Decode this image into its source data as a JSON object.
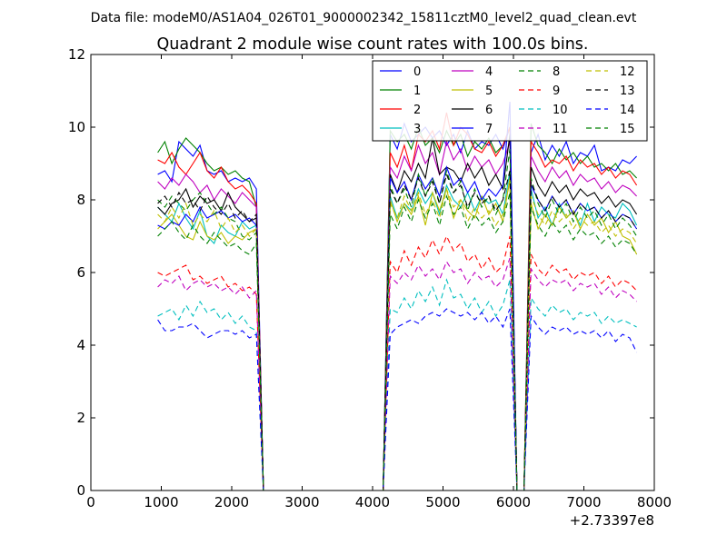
{
  "suptitle": "Data file: modeM0/AS1A04_026T01_9000002342_15811cztM0_level2_quad_clean.evt",
  "chart_data": {
    "type": "line",
    "title": "Quadrant 2 module wise count rates with 100.0s bins.",
    "xlabel": "",
    "ylabel": "",
    "x_offset_label": "+2.73397e8",
    "xlim": [
      0,
      8000
    ],
    "ylim": [
      0,
      12
    ],
    "xticks": [
      0,
      1000,
      2000,
      3000,
      4000,
      5000,
      6000,
      7000,
      8000
    ],
    "yticks": [
      0,
      2,
      4,
      6,
      8,
      10,
      12
    ],
    "grid": false,
    "legend_position": "top-right",
    "x": [
      950,
      1050,
      1150,
      1250,
      1350,
      1450,
      1550,
      1650,
      1750,
      1850,
      1950,
      2050,
      2150,
      2250,
      2350,
      2450,
      2550,
      2650,
      2750,
      2850,
      2950,
      3050,
      3150,
      3250,
      3350,
      3450,
      3550,
      3650,
      3750,
      3850,
      3950,
      4050,
      4150,
      4250,
      4350,
      4450,
      4550,
      4650,
      4750,
      4850,
      4950,
      5050,
      5150,
      5250,
      5350,
      5450,
      5550,
      5650,
      5750,
      5850,
      5950,
      6050,
      6150,
      6250,
      6350,
      6450,
      6550,
      6650,
      6750,
      6850,
      6950,
      7050,
      7150,
      7250,
      7350,
      7450,
      7550,
      7650,
      7750,
      7850
    ],
    "segments": [
      [
        0,
        16
      ],
      [
        16,
        34
      ],
      [
        34,
        52
      ],
      [
        52,
        54
      ],
      [
        54,
        70
      ]
    ],
    "series": [
      {
        "name": "0",
        "color": "#0000ff",
        "style": "solid",
        "active1": [
          8.7,
          8.8,
          8.5,
          9.6,
          9.4,
          9.2,
          9.5,
          8.8,
          8.7,
          8.8,
          8.5,
          8.6,
          8.5,
          8.6,
          8.3
        ],
        "active2": [
          9.8,
          9.4,
          10.1,
          9.6,
          9.8,
          10.0,
          9.7,
          9.9,
          9.5,
          9.8,
          9.3,
          9.9,
          9.4,
          9.6,
          9.5,
          9.8,
          9.4
        ],
        "active3": [
          9.3,
          9.8,
          9.1,
          9.5,
          9.2,
          9.6,
          9.0,
          9.3,
          9.2,
          9.5,
          8.8,
          8.9,
          8.8,
          9.1,
          9.0,
          9.2
        ],
        "peak": 10.0
      },
      {
        "name": "1",
        "color": "#008000",
        "style": "solid",
        "active1": [
          9.3,
          9.6,
          9.0,
          9.4,
          9.7,
          9.5,
          9.3,
          9.0,
          8.8,
          8.9,
          8.7,
          8.8,
          8.6,
          8.5,
          7.8
        ],
        "active2": [
          9.9,
          9.6,
          9.8,
          9.4,
          10.0,
          9.5,
          9.7,
          9.3,
          9.9,
          9.5,
          9.8,
          9.2,
          9.6,
          9.4,
          9.7,
          9.3,
          9.5
        ],
        "active3": [
          10.1,
          9.5,
          9.3,
          9.0,
          9.4,
          9.1,
          9.3,
          9.0,
          9.2,
          8.9,
          9.0,
          8.8,
          9.0,
          8.7,
          8.8,
          8.6
        ],
        "peak": 10.0
      },
      {
        "name": "2",
        "color": "#ff0000",
        "style": "solid",
        "active1": [
          9.1,
          9.0,
          9.3,
          8.9,
          8.7,
          9.0,
          9.3,
          8.8,
          8.6,
          8.9,
          8.5,
          8.3,
          8.4,
          8.2,
          7.9
        ],
        "active2": [
          9.3,
          8.9,
          9.5,
          8.8,
          9.8,
          9.6,
          9.9,
          9.4,
          10.4,
          9.5,
          10.0,
          9.8,
          9.4,
          9.3,
          9.6,
          9.2,
          9.5
        ],
        "active3": [
          9.6,
          9.3,
          8.9,
          9.1,
          9.0,
          9.2,
          8.8,
          9.1,
          8.9,
          9.0,
          8.7,
          8.9,
          8.6,
          8.8,
          8.7,
          8.4
        ],
        "peak": 10.0
      },
      {
        "name": "3",
        "color": "#00bfbf",
        "style": "solid",
        "active1": [
          7.8,
          7.6,
          7.4,
          7.9,
          7.5,
          7.2,
          7.7,
          7.0,
          6.8,
          7.3,
          7.1,
          7.0,
          7.4,
          7.2,
          7.3
        ],
        "active2": [
          8.1,
          7.5,
          7.9,
          7.7,
          8.3,
          7.9,
          8.2,
          7.6,
          8.4,
          8.0,
          7.8,
          8.2,
          7.7,
          8.1,
          7.9,
          8.0,
          7.6
        ],
        "active3": [
          8.3,
          7.5,
          7.8,
          7.3,
          7.9,
          7.5,
          7.7,
          7.3,
          7.9,
          7.4,
          7.8,
          7.6,
          7.5,
          7.9,
          7.7,
          7.3
        ],
        "peak": 8.8
      },
      {
        "name": "4",
        "color": "#bf00bf",
        "style": "solid",
        "active1": [
          8.5,
          8.3,
          8.6,
          8.4,
          8.7,
          8.5,
          8.2,
          8.4,
          8.0,
          8.3,
          8.1,
          7.9,
          8.2,
          8.0,
          7.8
        ],
        "active2": [
          8.9,
          8.6,
          9.2,
          8.8,
          9.5,
          9.0,
          9.3,
          8.7,
          9.6,
          9.1,
          9.4,
          8.8,
          9.2,
          8.9,
          9.1,
          8.7,
          9.0
        ],
        "active3": [
          9.2,
          8.8,
          8.5,
          8.9,
          8.6,
          8.8,
          8.4,
          8.7,
          8.5,
          8.6,
          8.3,
          8.5,
          8.2,
          8.4,
          8.3,
          8.1
        ],
        "peak": 9.6
      },
      {
        "name": "5",
        "color": "#bfbf00",
        "style": "solid",
        "active1": [
          7.2,
          7.4,
          7.6,
          7.3,
          7.0,
          6.9,
          7.4,
          7.0,
          6.9,
          7.1,
          6.8,
          7.0,
          6.9,
          7.1,
          7.2
        ],
        "active2": [
          8.0,
          7.4,
          7.9,
          7.6,
          8.1,
          7.3,
          8.2,
          7.7,
          8.3,
          7.5,
          8.0,
          7.7,
          7.5,
          8.1,
          7.6,
          7.9,
          7.4
        ],
        "active3": [
          7.9,
          7.2,
          7.6,
          7.3,
          7.8,
          7.5,
          7.7,
          7.2,
          7.6,
          7.3,
          7.5,
          7.1,
          7.4,
          7.0,
          6.9,
          6.5
        ],
        "peak": 8.6
      },
      {
        "name": "6",
        "color": "#000000",
        "style": "solid",
        "active1": [
          7.8,
          7.6,
          7.9,
          8.0,
          8.3,
          7.8,
          8.1,
          7.9,
          8.0,
          7.7,
          8.2,
          7.8,
          7.6,
          7.4,
          7.5
        ],
        "active2": [
          8.7,
          8.2,
          8.8,
          8.5,
          9.0,
          8.6,
          9.7,
          8.7,
          8.9,
          8.8,
          8.5,
          9.0,
          8.6,
          8.9,
          8.4,
          8.7,
          8.3
        ],
        "active3": [
          8.9,
          8.4,
          8.1,
          8.5,
          8.2,
          8.4,
          8.0,
          8.3,
          8.1,
          8.2,
          7.9,
          8.1,
          7.8,
          8.0,
          7.9,
          7.6
        ],
        "peak": 9.8
      },
      {
        "name": "7",
        "color": "#0000ff",
        "style": "solid",
        "active1": [
          7.3,
          7.2,
          7.4,
          7.3,
          7.6,
          7.4,
          7.8,
          7.5,
          7.6,
          7.7,
          7.5,
          7.6,
          7.4,
          7.5,
          7.3
        ],
        "active2": [
          8.6,
          8.2,
          8.5,
          8.0,
          8.7,
          8.3,
          8.6,
          8.1,
          8.9,
          8.4,
          8.6,
          8.2,
          8.5,
          8.0,
          8.3,
          8.1,
          8.4
        ],
        "active3": [
          8.4,
          8.0,
          7.7,
          8.1,
          7.8,
          8.0,
          7.6,
          7.9,
          7.7,
          7.8,
          7.5,
          7.7,
          7.4,
          7.6,
          7.5,
          7.2
        ],
        "peak": 10.7
      },
      {
        "name": "8",
        "color": "#008000",
        "style": "dashed",
        "active1": [
          8.0,
          7.8,
          8.1,
          7.9,
          7.7,
          8.0,
          8.2,
          7.9,
          7.6,
          7.8,
          7.5,
          7.4,
          7.0,
          6.9,
          7.1
        ],
        "active2": [
          8.4,
          7.9,
          8.3,
          7.8,
          8.7,
          8.1,
          8.6,
          7.9,
          8.8,
          8.2,
          8.5,
          7.7,
          8.3,
          7.8,
          8.1,
          7.6,
          8.0
        ],
        "active3": [
          8.6,
          7.9,
          7.5,
          8.0,
          7.6,
          7.9,
          7.4,
          7.8,
          7.5,
          7.7,
          7.3,
          7.6,
          7.2,
          7.5,
          7.3,
          7.0
        ],
        "peak": 9.4
      },
      {
        "name": "9",
        "color": "#ff0000",
        "style": "dashed",
        "active1": [
          6.0,
          5.9,
          6.0,
          6.1,
          6.2,
          5.8,
          5.9,
          5.7,
          5.8,
          5.9,
          5.6,
          5.7,
          5.5,
          5.6,
          5.4
        ],
        "active2": [
          6.3,
          6.0,
          6.6,
          6.2,
          6.7,
          6.4,
          6.9,
          6.5,
          7.0,
          6.6,
          6.8,
          6.3,
          6.5,
          6.1,
          6.4,
          6.0,
          6.2
        ],
        "active3": [
          6.5,
          6.1,
          5.9,
          6.2,
          6.0,
          6.1,
          5.8,
          6.0,
          5.9,
          6.0,
          5.7,
          5.9,
          5.6,
          5.8,
          5.7,
          5.5
        ],
        "peak": 7.0
      },
      {
        "name": "10",
        "color": "#00bfbf",
        "style": "dashed",
        "active1": [
          4.8,
          4.9,
          5.0,
          4.7,
          5.1,
          4.8,
          5.2,
          4.9,
          5.0,
          4.7,
          4.9,
          4.6,
          4.8,
          4.5,
          4.4
        ],
        "active2": [
          5.0,
          4.9,
          5.3,
          5.0,
          5.5,
          5.2,
          5.6,
          5.1,
          5.8,
          5.3,
          5.4,
          5.0,
          5.3,
          4.9,
          5.2,
          4.8,
          5.1
        ],
        "active3": [
          5.3,
          5.0,
          4.8,
          5.1,
          4.9,
          5.0,
          4.7,
          4.9,
          4.8,
          4.9,
          4.6,
          4.8,
          4.6,
          4.7,
          4.6,
          4.5
        ],
        "peak": 5.8
      },
      {
        "name": "11",
        "color": "#bf00bf",
        "style": "dashed",
        "active1": [
          5.6,
          5.8,
          5.7,
          5.9,
          5.5,
          5.7,
          5.8,
          5.6,
          5.7,
          5.5,
          5.6,
          5.4,
          5.6,
          5.3,
          5.5
        ],
        "active2": [
          5.9,
          5.7,
          6.0,
          5.8,
          6.2,
          5.9,
          6.1,
          5.8,
          6.3,
          6.0,
          6.1,
          5.7,
          6.0,
          5.8,
          5.9,
          5.6,
          5.8
        ],
        "active3": [
          6.1,
          5.8,
          5.6,
          5.8,
          5.7,
          5.8,
          5.5,
          5.7,
          5.6,
          5.7,
          5.4,
          5.6,
          5.3,
          5.5,
          5.4,
          5.2
        ],
        "peak": 6.4
      },
      {
        "name": "12",
        "color": "#bfbf00",
        "style": "dashed",
        "active1": [
          7.6,
          7.4,
          7.8,
          7.5,
          7.9,
          7.3,
          7.6,
          7.4,
          7.7,
          7.2,
          7.5,
          7.1,
          7.3,
          7.0,
          7.2
        ],
        "active2": [
          7.9,
          7.5,
          8.1,
          7.7,
          8.2,
          7.6,
          8.0,
          7.5,
          8.3,
          7.8,
          8.0,
          7.4,
          7.8,
          7.5,
          7.7,
          7.3,
          7.6
        ],
        "active3": [
          8.1,
          7.6,
          7.3,
          7.7,
          7.4,
          7.6,
          7.2,
          7.5,
          7.3,
          7.4,
          7.1,
          7.3,
          7.0,
          7.2,
          7.1,
          6.8
        ],
        "peak": 8.5
      },
      {
        "name": "13",
        "color": "#000000",
        "style": "dashed",
        "active1": [
          7.9,
          8.1,
          7.8,
          8.2,
          7.9,
          8.0,
          7.7,
          8.1,
          7.8,
          7.6,
          7.9,
          7.5,
          7.7,
          7.4,
          7.6
        ],
        "active2": [
          8.3,
          7.9,
          8.4,
          8.0,
          8.6,
          8.1,
          8.5,
          7.9,
          8.7,
          8.2,
          8.4,
          7.8,
          8.2,
          7.9,
          8.1,
          7.7,
          8.0
        ],
        "active3": [
          8.5,
          8.0,
          7.7,
          8.1,
          7.8,
          8.0,
          7.6,
          7.9,
          7.7,
          7.8,
          7.5,
          7.7,
          7.4,
          7.6,
          7.5,
          7.2
        ],
        "peak": 8.8
      },
      {
        "name": "14",
        "color": "#0000ff",
        "style": "dashed",
        "active1": [
          4.7,
          4.4,
          4.4,
          4.5,
          4.5,
          4.6,
          4.4,
          4.2,
          4.3,
          4.4,
          4.4,
          4.3,
          4.4,
          4.2,
          4.3
        ],
        "active2": [
          4.3,
          4.5,
          4.6,
          4.7,
          4.6,
          4.8,
          4.9,
          4.8,
          5.0,
          4.9,
          4.8,
          4.9,
          4.7,
          4.9,
          4.6,
          4.8,
          4.5
        ],
        "active3": [
          4.8,
          4.5,
          4.3,
          4.5,
          4.4,
          4.5,
          4.3,
          4.4,
          4.3,
          4.4,
          4.2,
          4.4,
          4.1,
          4.3,
          4.2,
          3.8
        ],
        "peak": 5.0
      },
      {
        "name": "15",
        "color": "#008000",
        "style": "dashed",
        "active1": [
          7.0,
          7.2,
          7.4,
          7.1,
          6.9,
          7.3,
          7.0,
          6.8,
          7.1,
          6.9,
          6.7,
          6.8,
          6.6,
          6.5,
          6.8
        ],
        "active2": [
          7.6,
          7.2,
          7.8,
          7.4,
          8.0,
          7.5,
          7.9,
          7.3,
          8.1,
          7.6,
          7.8,
          7.2,
          7.6,
          7.3,
          7.5,
          7.1,
          7.4
        ],
        "active3": [
          7.8,
          7.3,
          7.0,
          7.4,
          7.1,
          7.3,
          6.9,
          7.2,
          7.0,
          7.1,
          6.8,
          7.0,
          6.7,
          6.9,
          6.8,
          6.5
        ],
        "peak": 8.2
      }
    ]
  }
}
